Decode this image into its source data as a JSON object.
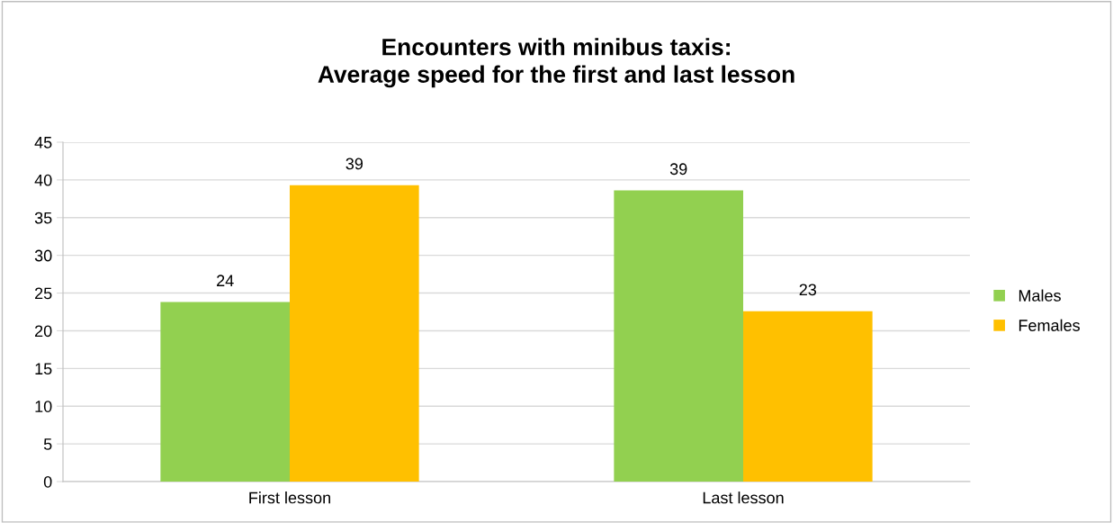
{
  "chart_data": {
    "type": "bar",
    "title": "Encounters with minibus taxis:\nAverage speed for the first and last lesson",
    "categories": [
      "First lesson",
      "Last lesson"
    ],
    "series": [
      {
        "name": "Males",
        "color": "#92d050",
        "values": [
          23.8,
          38.6
        ],
        "value_labels": [
          "24",
          "39"
        ]
      },
      {
        "name": "Females",
        "color": "#ffc000",
        "values": [
          39.3,
          22.6
        ],
        "value_labels": [
          "39",
          "23"
        ]
      }
    ],
    "ylim": [
      0,
      45
    ],
    "yticks": [
      0,
      5,
      10,
      15,
      20,
      25,
      30,
      35,
      40,
      45
    ],
    "grid": "y",
    "legend": "right"
  }
}
